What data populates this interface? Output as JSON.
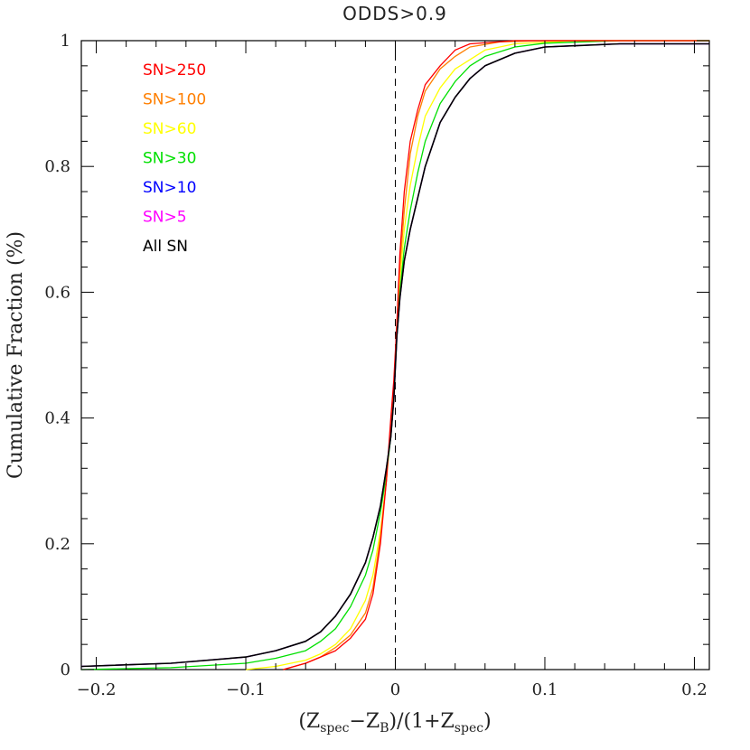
{
  "chart_data": {
    "type": "line",
    "title": "ODDS>0.9",
    "xlabel": {
      "parts": [
        {
          "text": "(Z",
          "sub": false
        },
        {
          "text": "spec",
          "sub": true
        },
        {
          "text": "−Z",
          "sub": false
        },
        {
          "text": "B",
          "sub": true
        },
        {
          "text": ")/(1+Z",
          "sub": false
        },
        {
          "text": "spec",
          "sub": true
        },
        {
          "text": ")",
          "sub": false
        }
      ]
    },
    "ylabel": "Cumulative Fraction (%)",
    "xlim": [
      -0.21,
      0.21
    ],
    "ylim": [
      0,
      1
    ],
    "x_ticks": [
      {
        "value": -0.2,
        "label": "−0.2"
      },
      {
        "value": -0.1,
        "label": "−0.1"
      },
      {
        "value": 0,
        "label": "0"
      },
      {
        "value": 0.1,
        "label": "0.1"
      },
      {
        "value": 0.2,
        "label": "0.2"
      }
    ],
    "y_ticks": [
      {
        "value": 0,
        "label": "0"
      },
      {
        "value": 0.2,
        "label": "0.2"
      },
      {
        "value": 0.4,
        "label": "0.4"
      },
      {
        "value": 0.6,
        "label": "0.6"
      },
      {
        "value": 0.8,
        "label": "0.8"
      },
      {
        "value": 1,
        "label": "1"
      }
    ],
    "x_minor_step": 0.02,
    "y_minor_step": 0.04,
    "reference_line": {
      "x": 0,
      "style": "dashed"
    },
    "legend_position": "top-left",
    "grid": false,
    "series": [
      {
        "name": "SN>250",
        "color": "#ff0000",
        "points": [
          [
            -0.075,
            0.0
          ],
          [
            -0.06,
            0.01
          ],
          [
            -0.05,
            0.02
          ],
          [
            -0.04,
            0.03
          ],
          [
            -0.03,
            0.05
          ],
          [
            -0.02,
            0.08
          ],
          [
            -0.015,
            0.12
          ],
          [
            -0.01,
            0.2
          ],
          [
            -0.006,
            0.3
          ],
          [
            -0.003,
            0.4
          ],
          [
            -0.001,
            0.46
          ],
          [
            0.001,
            0.55
          ],
          [
            0.003,
            0.66
          ],
          [
            0.006,
            0.76
          ],
          [
            0.01,
            0.84
          ],
          [
            0.015,
            0.89
          ],
          [
            0.02,
            0.93
          ],
          [
            0.03,
            0.96
          ],
          [
            0.04,
            0.985
          ],
          [
            0.05,
            0.995
          ],
          [
            0.08,
            1.0
          ],
          [
            0.21,
            1.0
          ]
        ]
      },
      {
        "name": "SN>100",
        "color": "#ff7f00",
        "points": [
          [
            -0.075,
            0.0
          ],
          [
            -0.06,
            0.01
          ],
          [
            -0.05,
            0.02
          ],
          [
            -0.04,
            0.035
          ],
          [
            -0.03,
            0.055
          ],
          [
            -0.02,
            0.09
          ],
          [
            -0.015,
            0.13
          ],
          [
            -0.01,
            0.21
          ],
          [
            -0.006,
            0.3
          ],
          [
            -0.003,
            0.39
          ],
          [
            -0.001,
            0.45
          ],
          [
            0.001,
            0.55
          ],
          [
            0.003,
            0.64
          ],
          [
            0.006,
            0.73
          ],
          [
            0.01,
            0.82
          ],
          [
            0.015,
            0.88
          ],
          [
            0.02,
            0.92
          ],
          [
            0.03,
            0.955
          ],
          [
            0.04,
            0.975
          ],
          [
            0.05,
            0.99
          ],
          [
            0.07,
            0.998
          ],
          [
            0.1,
            1.0
          ],
          [
            0.21,
            1.0
          ]
        ]
      },
      {
        "name": "SN>60",
        "color": "#ffff00",
        "points": [
          [
            -0.1,
            0.0
          ],
          [
            -0.08,
            0.005
          ],
          [
            -0.06,
            0.015
          ],
          [
            -0.05,
            0.025
          ],
          [
            -0.04,
            0.04
          ],
          [
            -0.03,
            0.065
          ],
          [
            -0.02,
            0.11
          ],
          [
            -0.015,
            0.15
          ],
          [
            -0.01,
            0.22
          ],
          [
            -0.006,
            0.3
          ],
          [
            -0.003,
            0.38
          ],
          [
            -0.001,
            0.44
          ],
          [
            0.001,
            0.55
          ],
          [
            0.003,
            0.62
          ],
          [
            0.006,
            0.7
          ],
          [
            0.01,
            0.77
          ],
          [
            0.015,
            0.83
          ],
          [
            0.02,
            0.88
          ],
          [
            0.03,
            0.925
          ],
          [
            0.04,
            0.955
          ],
          [
            0.05,
            0.97
          ],
          [
            0.06,
            0.985
          ],
          [
            0.08,
            0.995
          ],
          [
            0.12,
            1.0
          ],
          [
            0.21,
            1.0
          ]
        ]
      },
      {
        "name": "SN>30",
        "color": "#00e000",
        "points": [
          [
            -0.21,
            0.0
          ],
          [
            -0.15,
            0.003
          ],
          [
            -0.1,
            0.01
          ],
          [
            -0.08,
            0.018
          ],
          [
            -0.06,
            0.03
          ],
          [
            -0.05,
            0.045
          ],
          [
            -0.04,
            0.065
          ],
          [
            -0.03,
            0.1
          ],
          [
            -0.02,
            0.15
          ],
          [
            -0.015,
            0.19
          ],
          [
            -0.01,
            0.25
          ],
          [
            -0.006,
            0.31
          ],
          [
            -0.003,
            0.37
          ],
          [
            -0.001,
            0.43
          ],
          [
            0.001,
            0.54
          ],
          [
            0.003,
            0.6
          ],
          [
            0.006,
            0.67
          ],
          [
            0.01,
            0.73
          ],
          [
            0.015,
            0.79
          ],
          [
            0.02,
            0.84
          ],
          [
            0.03,
            0.9
          ],
          [
            0.04,
            0.935
          ],
          [
            0.05,
            0.96
          ],
          [
            0.06,
            0.975
          ],
          [
            0.08,
            0.99
          ],
          [
            0.1,
            0.996
          ],
          [
            0.15,
            1.0
          ],
          [
            0.21,
            1.0
          ]
        ]
      },
      {
        "name": "SN>10",
        "color": "#0000ff",
        "points": [
          [
            -0.21,
            0.005
          ],
          [
            -0.15,
            0.01
          ],
          [
            -0.1,
            0.02
          ],
          [
            -0.08,
            0.03
          ],
          [
            -0.06,
            0.045
          ],
          [
            -0.05,
            0.06
          ],
          [
            -0.04,
            0.085
          ],
          [
            -0.03,
            0.12
          ],
          [
            -0.02,
            0.17
          ],
          [
            -0.015,
            0.21
          ],
          [
            -0.01,
            0.26
          ],
          [
            -0.006,
            0.32
          ],
          [
            -0.003,
            0.37
          ],
          [
            -0.001,
            0.43
          ],
          [
            0.001,
            0.53
          ],
          [
            0.003,
            0.59
          ],
          [
            0.006,
            0.65
          ],
          [
            0.01,
            0.7
          ],
          [
            0.015,
            0.75
          ],
          [
            0.02,
            0.8
          ],
          [
            0.03,
            0.87
          ],
          [
            0.04,
            0.91
          ],
          [
            0.05,
            0.94
          ],
          [
            0.06,
            0.96
          ],
          [
            0.08,
            0.98
          ],
          [
            0.1,
            0.99
          ],
          [
            0.15,
            0.995
          ],
          [
            0.21,
            0.995
          ]
        ]
      },
      {
        "name": "SN>5",
        "color": "#ff00ff",
        "points": [
          [
            -0.21,
            0.005
          ],
          [
            -0.15,
            0.01
          ],
          [
            -0.1,
            0.02
          ],
          [
            -0.08,
            0.03
          ],
          [
            -0.06,
            0.045
          ],
          [
            -0.05,
            0.06
          ],
          [
            -0.04,
            0.085
          ],
          [
            -0.03,
            0.12
          ],
          [
            -0.02,
            0.17
          ],
          [
            -0.015,
            0.21
          ],
          [
            -0.01,
            0.26
          ],
          [
            -0.006,
            0.32
          ],
          [
            -0.003,
            0.37
          ],
          [
            -0.001,
            0.43
          ],
          [
            0.001,
            0.53
          ],
          [
            0.003,
            0.59
          ],
          [
            0.006,
            0.65
          ],
          [
            0.01,
            0.7
          ],
          [
            0.015,
            0.75
          ],
          [
            0.02,
            0.8
          ],
          [
            0.03,
            0.87
          ],
          [
            0.04,
            0.91
          ],
          [
            0.05,
            0.94
          ],
          [
            0.06,
            0.96
          ],
          [
            0.08,
            0.98
          ],
          [
            0.1,
            0.99
          ],
          [
            0.15,
            0.995
          ],
          [
            0.21,
            0.995
          ]
        ]
      },
      {
        "name": "All SN",
        "color": "#000000",
        "points": [
          [
            -0.21,
            0.005
          ],
          [
            -0.15,
            0.01
          ],
          [
            -0.1,
            0.02
          ],
          [
            -0.08,
            0.03
          ],
          [
            -0.06,
            0.045
          ],
          [
            -0.05,
            0.06
          ],
          [
            -0.04,
            0.085
          ],
          [
            -0.03,
            0.12
          ],
          [
            -0.02,
            0.17
          ],
          [
            -0.015,
            0.21
          ],
          [
            -0.01,
            0.26
          ],
          [
            -0.006,
            0.32
          ],
          [
            -0.003,
            0.37
          ],
          [
            -0.001,
            0.43
          ],
          [
            0.001,
            0.53
          ],
          [
            0.003,
            0.59
          ],
          [
            0.006,
            0.65
          ],
          [
            0.01,
            0.7
          ],
          [
            0.015,
            0.75
          ],
          [
            0.02,
            0.8
          ],
          [
            0.03,
            0.87
          ],
          [
            0.04,
            0.91
          ],
          [
            0.05,
            0.94
          ],
          [
            0.06,
            0.96
          ],
          [
            0.08,
            0.98
          ],
          [
            0.1,
            0.99
          ],
          [
            0.15,
            0.995
          ],
          [
            0.21,
            0.995
          ]
        ]
      }
    ]
  }
}
